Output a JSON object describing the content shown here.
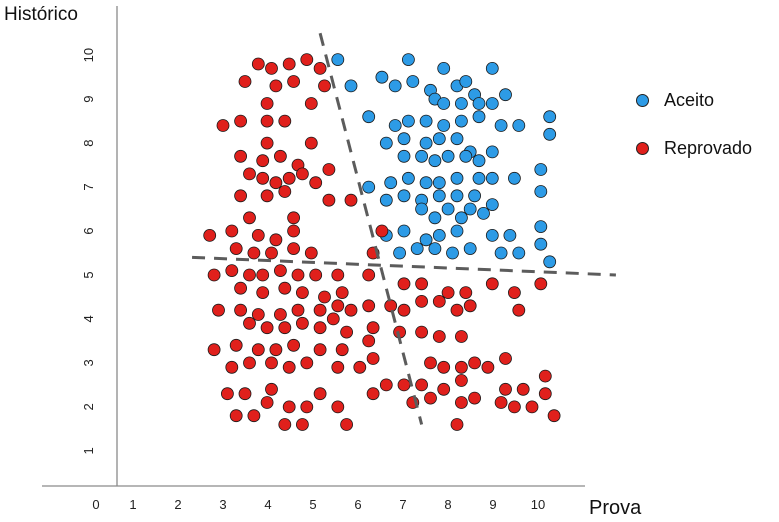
{
  "chart_data": {
    "type": "scatter",
    "xlabel": "Prova",
    "ylabel": "Histórico",
    "xlim": [
      0,
      10.6
    ],
    "ylim": [
      0.2,
      10.8
    ],
    "x_ticks": [
      0,
      1,
      2,
      3,
      4,
      5,
      6,
      7,
      8,
      9,
      10
    ],
    "y_ticks": [
      1,
      2,
      3,
      4,
      5,
      6,
      7,
      8,
      9,
      10
    ],
    "grid": false,
    "legend_position": "right",
    "series": [
      {
        "name": "Aceito",
        "color": "#2d9be6",
        "points": [
          [
            5.0,
            9.9
          ],
          [
            5.3,
            9.3
          ],
          [
            6.0,
            9.5
          ],
          [
            6.6,
            9.9
          ],
          [
            6.3,
            9.3
          ],
          [
            6.7,
            9.4
          ],
          [
            7.1,
            9.2
          ],
          [
            7.4,
            9.7
          ],
          [
            7.7,
            9.3
          ],
          [
            7.9,
            9.4
          ],
          [
            8.1,
            9.1
          ],
          [
            8.5,
            9.7
          ],
          [
            8.8,
            9.1
          ],
          [
            7.2,
            9.0
          ],
          [
            7.4,
            8.9
          ],
          [
            7.8,
            8.9
          ],
          [
            8.2,
            8.9
          ],
          [
            8.5,
            8.9
          ],
          [
            5.7,
            8.6
          ],
          [
            6.3,
            8.4
          ],
          [
            6.6,
            8.5
          ],
          [
            7.0,
            8.5
          ],
          [
            7.4,
            8.4
          ],
          [
            7.8,
            8.5
          ],
          [
            8.2,
            8.6
          ],
          [
            8.7,
            8.4
          ],
          [
            9.1,
            8.4
          ],
          [
            9.8,
            8.6
          ],
          [
            9.8,
            8.2
          ],
          [
            6.1,
            8.0
          ],
          [
            6.5,
            8.1
          ],
          [
            7.0,
            8.0
          ],
          [
            7.3,
            8.1
          ],
          [
            7.7,
            8.1
          ],
          [
            8.0,
            7.8
          ],
          [
            8.5,
            7.8
          ],
          [
            6.5,
            7.7
          ],
          [
            6.9,
            7.7
          ],
          [
            7.2,
            7.6
          ],
          [
            7.5,
            7.7
          ],
          [
            7.9,
            7.7
          ],
          [
            8.2,
            7.6
          ],
          [
            9.6,
            7.4
          ],
          [
            6.2,
            7.1
          ],
          [
            6.6,
            7.2
          ],
          [
            7.0,
            7.1
          ],
          [
            7.3,
            7.1
          ],
          [
            7.7,
            7.2
          ],
          [
            8.2,
            7.2
          ],
          [
            8.5,
            7.2
          ],
          [
            9.0,
            7.2
          ],
          [
            5.7,
            7.0
          ],
          [
            6.1,
            6.7
          ],
          [
            6.5,
            6.8
          ],
          [
            6.9,
            6.7
          ],
          [
            7.3,
            6.8
          ],
          [
            7.7,
            6.8
          ],
          [
            8.1,
            6.8
          ],
          [
            8.5,
            6.6
          ],
          [
            9.6,
            6.9
          ],
          [
            6.9,
            6.5
          ],
          [
            7.2,
            6.3
          ],
          [
            7.5,
            6.5
          ],
          [
            7.8,
            6.3
          ],
          [
            8.0,
            6.5
          ],
          [
            8.3,
            6.4
          ],
          [
            6.1,
            5.9
          ],
          [
            6.5,
            6.0
          ],
          [
            7.0,
            5.8
          ],
          [
            7.3,
            5.9
          ],
          [
            7.7,
            6.0
          ],
          [
            8.5,
            5.9
          ],
          [
            8.9,
            5.9
          ],
          [
            9.6,
            6.1
          ],
          [
            9.6,
            5.7
          ],
          [
            6.4,
            5.5
          ],
          [
            6.8,
            5.6
          ],
          [
            7.2,
            5.6
          ],
          [
            7.6,
            5.5
          ],
          [
            8.0,
            5.6
          ],
          [
            8.7,
            5.5
          ],
          [
            9.1,
            5.5
          ],
          [
            9.8,
            5.3
          ]
        ]
      },
      {
        "name": "Reprovado",
        "color": "#e0201c",
        "points": [
          [
            3.2,
            9.8
          ],
          [
            3.5,
            9.7
          ],
          [
            3.9,
            9.8
          ],
          [
            4.3,
            9.9
          ],
          [
            4.6,
            9.7
          ],
          [
            2.9,
            9.4
          ],
          [
            3.6,
            9.3
          ],
          [
            4.0,
            9.4
          ],
          [
            4.7,
            9.3
          ],
          [
            3.4,
            8.9
          ],
          [
            4.4,
            8.9
          ],
          [
            2.4,
            8.4
          ],
          [
            2.8,
            8.5
          ],
          [
            3.4,
            8.5
          ],
          [
            3.8,
            8.5
          ],
          [
            4.4,
            8.0
          ],
          [
            3.4,
            8.0
          ],
          [
            2.8,
            7.7
          ],
          [
            3.3,
            7.6
          ],
          [
            3.7,
            7.7
          ],
          [
            4.1,
            7.5
          ],
          [
            3.0,
            7.3
          ],
          [
            3.3,
            7.2
          ],
          [
            3.6,
            7.1
          ],
          [
            3.9,
            7.2
          ],
          [
            4.2,
            7.3
          ],
          [
            4.5,
            7.1
          ],
          [
            4.8,
            7.4
          ],
          [
            2.8,
            6.8
          ],
          [
            3.4,
            6.8
          ],
          [
            3.8,
            6.9
          ],
          [
            4.8,
            6.7
          ],
          [
            5.3,
            6.7
          ],
          [
            4.0,
            6.3
          ],
          [
            3.0,
            6.3
          ],
          [
            2.1,
            5.9
          ],
          [
            2.6,
            6.0
          ],
          [
            3.2,
            5.9
          ],
          [
            3.6,
            5.8
          ],
          [
            4.0,
            6.0
          ],
          [
            2.7,
            5.6
          ],
          [
            3.1,
            5.5
          ],
          [
            3.5,
            5.5
          ],
          [
            4.0,
            5.6
          ],
          [
            4.4,
            5.5
          ],
          [
            2.2,
            5.0
          ],
          [
            2.6,
            5.1
          ],
          [
            3.0,
            5.0
          ],
          [
            3.3,
            5.0
          ],
          [
            3.7,
            5.1
          ],
          [
            4.1,
            5.0
          ],
          [
            4.5,
            5.0
          ],
          [
            5.0,
            5.0
          ],
          [
            5.7,
            5.0
          ],
          [
            6.0,
            6.0
          ],
          [
            5.8,
            5.5
          ],
          [
            2.8,
            4.7
          ],
          [
            3.3,
            4.6
          ],
          [
            3.8,
            4.7
          ],
          [
            4.2,
            4.6
          ],
          [
            4.7,
            4.5
          ],
          [
            5.1,
            4.6
          ],
          [
            6.5,
            4.8
          ],
          [
            6.9,
            4.8
          ],
          [
            7.5,
            4.6
          ],
          [
            7.9,
            4.6
          ],
          [
            8.5,
            4.8
          ],
          [
            9.0,
            4.6
          ],
          [
            9.6,
            4.8
          ],
          [
            2.3,
            4.2
          ],
          [
            2.8,
            4.2
          ],
          [
            3.2,
            4.1
          ],
          [
            3.7,
            4.1
          ],
          [
            4.1,
            4.2
          ],
          [
            4.6,
            4.2
          ],
          [
            5.0,
            4.3
          ],
          [
            5.3,
            4.2
          ],
          [
            5.7,
            4.3
          ],
          [
            6.2,
            4.3
          ],
          [
            6.5,
            4.2
          ],
          [
            6.9,
            4.4
          ],
          [
            7.3,
            4.4
          ],
          [
            7.7,
            4.2
          ],
          [
            8.0,
            4.3
          ],
          [
            9.1,
            4.2
          ],
          [
            3.0,
            3.9
          ],
          [
            3.4,
            3.8
          ],
          [
            3.8,
            3.8
          ],
          [
            4.2,
            3.9
          ],
          [
            4.6,
            3.8
          ],
          [
            4.9,
            4.0
          ],
          [
            5.2,
            3.7
          ],
          [
            5.8,
            3.8
          ],
          [
            6.4,
            3.7
          ],
          [
            6.9,
            3.7
          ],
          [
            7.3,
            3.6
          ],
          [
            7.8,
            3.6
          ],
          [
            2.2,
            3.3
          ],
          [
            2.7,
            3.4
          ],
          [
            3.2,
            3.3
          ],
          [
            3.6,
            3.3
          ],
          [
            4.0,
            3.4
          ],
          [
            4.6,
            3.3
          ],
          [
            5.1,
            3.3
          ],
          [
            5.7,
            3.5
          ],
          [
            2.6,
            2.9
          ],
          [
            3.0,
            3.0
          ],
          [
            3.5,
            3.0
          ],
          [
            3.9,
            2.9
          ],
          [
            4.3,
            3.0
          ],
          [
            5.0,
            2.9
          ],
          [
            5.5,
            2.9
          ],
          [
            5.8,
            3.1
          ],
          [
            7.1,
            3.0
          ],
          [
            7.4,
            2.9
          ],
          [
            7.8,
            2.9
          ],
          [
            8.1,
            3.0
          ],
          [
            8.4,
            2.9
          ],
          [
            8.8,
            3.1
          ],
          [
            6.5,
            2.5
          ],
          [
            6.9,
            2.5
          ],
          [
            7.4,
            2.4
          ],
          [
            7.8,
            2.6
          ],
          [
            8.8,
            2.4
          ],
          [
            9.2,
            2.4
          ],
          [
            9.7,
            2.7
          ],
          [
            2.5,
            2.3
          ],
          [
            2.9,
            2.3
          ],
          [
            3.5,
            2.4
          ],
          [
            4.6,
            2.3
          ],
          [
            5.8,
            2.3
          ],
          [
            6.1,
            2.5
          ],
          [
            7.1,
            2.2
          ],
          [
            8.1,
            2.2
          ],
          [
            9.7,
            2.3
          ],
          [
            3.4,
            2.1
          ],
          [
            3.9,
            2.0
          ],
          [
            4.3,
            2.0
          ],
          [
            5.0,
            2.0
          ],
          [
            6.7,
            2.1
          ],
          [
            7.8,
            2.1
          ],
          [
            8.7,
            2.1
          ],
          [
            9.0,
            2.0
          ],
          [
            9.4,
            2.0
          ],
          [
            2.7,
            1.8
          ],
          [
            3.1,
            1.8
          ],
          [
            3.8,
            1.6
          ],
          [
            4.2,
            1.6
          ],
          [
            5.2,
            1.6
          ],
          [
            7.7,
            1.6
          ],
          [
            9.9,
            1.8
          ]
        ]
      }
    ],
    "boundary_lines": [
      {
        "from": [
          4.6,
          10.5
        ],
        "to": [
          6.9,
          1.6
        ]
      },
      {
        "from": [
          1.7,
          5.4
        ],
        "to": [
          11.3,
          5.0
        ]
      }
    ]
  }
}
